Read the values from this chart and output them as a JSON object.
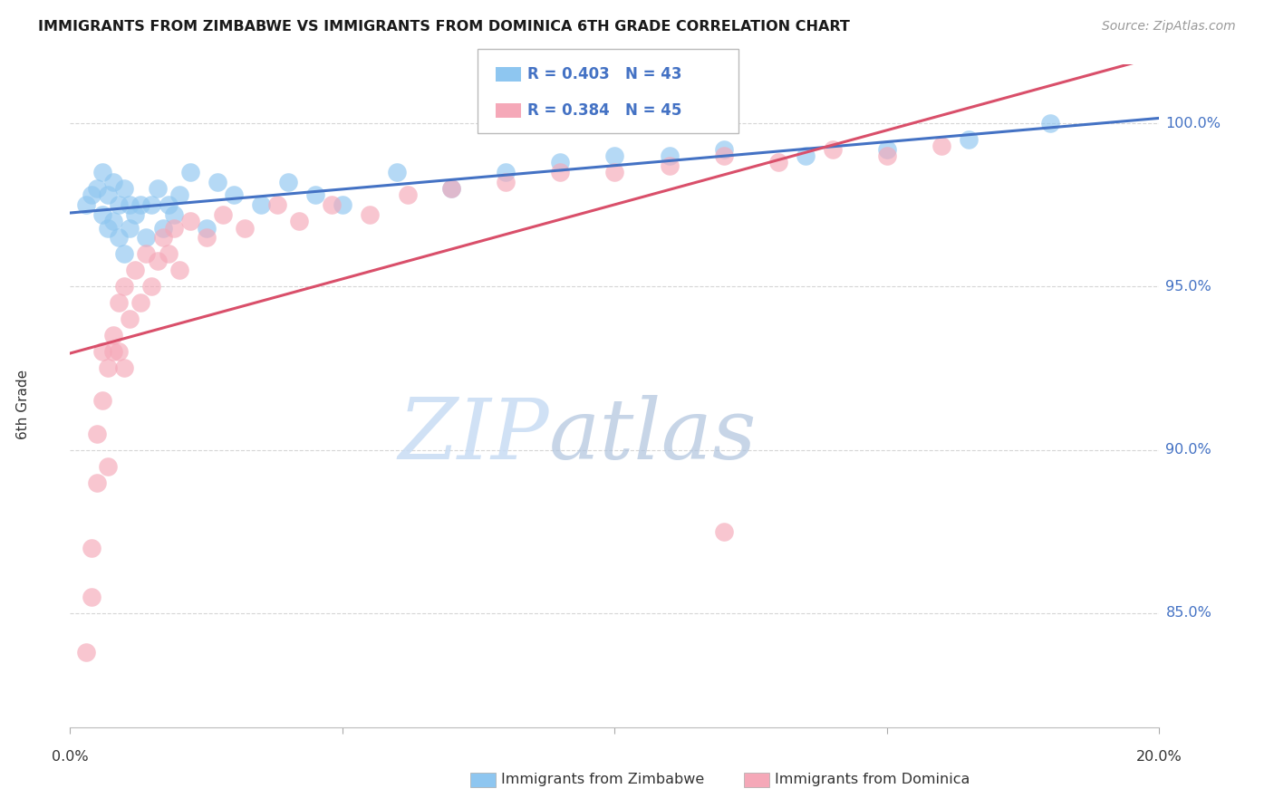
{
  "title": "IMMIGRANTS FROM ZIMBABWE VS IMMIGRANTS FROM DOMINICA 6TH GRADE CORRELATION CHART",
  "source": "Source: ZipAtlas.com",
  "ylabel": "6th Grade",
  "ylabel_right_ticks": [
    "85.0%",
    "90.0%",
    "95.0%",
    "100.0%"
  ],
  "ylabel_right_vals": [
    0.85,
    0.9,
    0.95,
    1.0
  ],
  "x_min": 0.0,
  "x_max": 0.2,
  "y_min": 0.815,
  "y_max": 1.018,
  "legend_r_zim": "R = 0.403",
  "legend_n_zim": "N = 43",
  "legend_r_dom": "R = 0.384",
  "legend_n_dom": "N = 45",
  "color_zim": "#8EC6F0",
  "color_dom": "#F5A8B8",
  "line_color_zim": "#4472C4",
  "line_color_dom": "#D94F6A",
  "watermark_zip_color": "#C8DCF0",
  "watermark_atlas_color": "#B8C8E0",
  "grid_color": "#CCCCCC",
  "title_color": "#1A1A1A",
  "source_color": "#999999",
  "right_axis_color": "#4472C4",
  "legend_text_color": "#4472C4",
  "zimbabwe_x": [
    0.003,
    0.004,
    0.005,
    0.006,
    0.006,
    0.007,
    0.007,
    0.008,
    0.008,
    0.009,
    0.009,
    0.01,
    0.01,
    0.011,
    0.011,
    0.012,
    0.013,
    0.014,
    0.015,
    0.016,
    0.017,
    0.018,
    0.019,
    0.02,
    0.022,
    0.025,
    0.027,
    0.03,
    0.035,
    0.04,
    0.045,
    0.05,
    0.06,
    0.07,
    0.08,
    0.09,
    0.1,
    0.11,
    0.12,
    0.135,
    0.15,
    0.165,
    0.18
  ],
  "zimbabwe_y": [
    0.975,
    0.978,
    0.98,
    0.972,
    0.985,
    0.968,
    0.978,
    0.982,
    0.97,
    0.975,
    0.965,
    0.98,
    0.96,
    0.975,
    0.968,
    0.972,
    0.975,
    0.965,
    0.975,
    0.98,
    0.968,
    0.975,
    0.972,
    0.978,
    0.985,
    0.968,
    0.982,
    0.978,
    0.975,
    0.982,
    0.978,
    0.975,
    0.985,
    0.98,
    0.985,
    0.988,
    0.99,
    0.99,
    0.992,
    0.99,
    0.992,
    0.995,
    1.0
  ],
  "dominica_x": [
    0.003,
    0.004,
    0.004,
    0.005,
    0.005,
    0.006,
    0.006,
    0.007,
    0.007,
    0.008,
    0.008,
    0.009,
    0.009,
    0.01,
    0.01,
    0.011,
    0.012,
    0.013,
    0.014,
    0.015,
    0.016,
    0.017,
    0.018,
    0.019,
    0.02,
    0.022,
    0.025,
    0.028,
    0.032,
    0.038,
    0.042,
    0.048,
    0.055,
    0.062,
    0.07,
    0.08,
    0.09,
    0.1,
    0.11,
    0.12,
    0.13,
    0.14,
    0.15,
    0.16,
    0.12
  ],
  "dominica_y": [
    0.838,
    0.855,
    0.87,
    0.89,
    0.905,
    0.915,
    0.93,
    0.895,
    0.925,
    0.93,
    0.935,
    0.945,
    0.93,
    0.925,
    0.95,
    0.94,
    0.955,
    0.945,
    0.96,
    0.95,
    0.958,
    0.965,
    0.96,
    0.968,
    0.955,
    0.97,
    0.965,
    0.972,
    0.968,
    0.975,
    0.97,
    0.975,
    0.972,
    0.978,
    0.98,
    0.982,
    0.985,
    0.985,
    0.987,
    0.99,
    0.988,
    0.992,
    0.99,
    0.993,
    0.875
  ]
}
